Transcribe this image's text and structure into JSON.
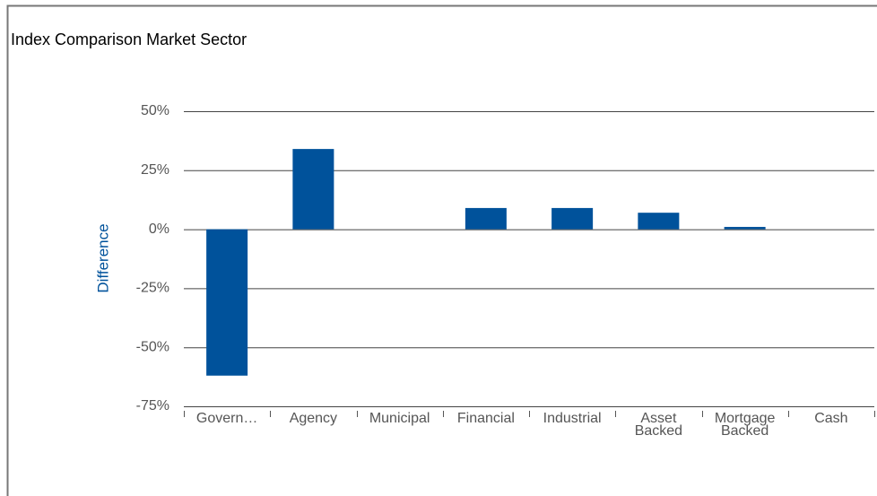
{
  "chart_data": {
    "type": "bar",
    "title": "Index Comparison Market Sector",
    "y_label": "Difference",
    "categories": [
      "Govern…",
      "Agency",
      "Municipal",
      "Financial",
      "Industrial",
      "Asset Backed",
      "Mortgage Backed",
      "Cash"
    ],
    "values": [
      -62,
      34,
      0,
      9,
      9,
      7,
      1,
      0
    ],
    "color": "#00529b",
    "ylim": [
      -75,
      50
    ],
    "yticks": [
      {
        "value": -75,
        "label": "-75%"
      },
      {
        "value": -50,
        "label": "-50%"
      },
      {
        "value": -25,
        "label": "-25%"
      },
      {
        "value": 0,
        "label": "0%"
      },
      {
        "value": 25,
        "label": "25%"
      },
      {
        "value": 50,
        "label": "50%"
      }
    ],
    "grid": true
  }
}
